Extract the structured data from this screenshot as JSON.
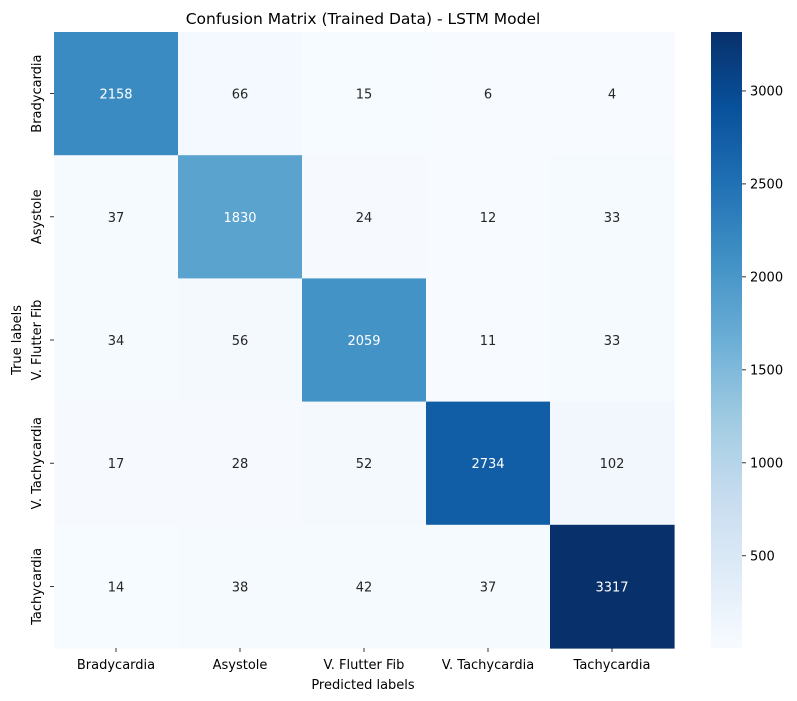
{
  "chart_data": {
    "type": "heatmap",
    "title": "Confusion Matrix (Trained Data) - LSTM Model",
    "xlabel": "Predicted labels",
    "ylabel": "True labels",
    "x_categories": [
      "Bradycardia",
      "Asystole",
      "V. Flutter Fib",
      "V. Tachycardia",
      "Tachycardia"
    ],
    "y_categories": [
      "Bradycardia",
      "Asystole",
      "V. Flutter Fib",
      "V. Tachycardia",
      "Tachycardia"
    ],
    "values": [
      [
        2158,
        66,
        15,
        6,
        4
      ],
      [
        37,
        1830,
        24,
        12,
        33
      ],
      [
        34,
        56,
        2059,
        11,
        33
      ],
      [
        17,
        28,
        52,
        2734,
        102
      ],
      [
        14,
        38,
        42,
        37,
        3317
      ]
    ],
    "colormap": "Blues",
    "color_range": [
      4,
      3317
    ],
    "colorbar_ticks": [
      500,
      1000,
      1500,
      2000,
      2500,
      3000
    ],
    "colorbar_tick_labels": [
      "500",
      "1000",
      "1500",
      "2000",
      "2500",
      "3000"
    ]
  }
}
